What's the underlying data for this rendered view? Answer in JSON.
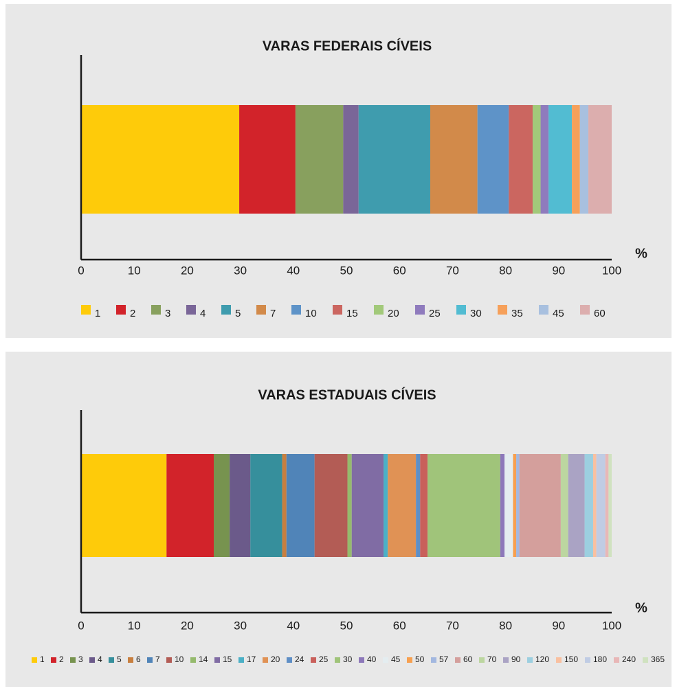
{
  "chart_data": [
    {
      "type": "stacked-bar",
      "title": "VARAS FEDERAIS CÍVEIS",
      "x_label": "%",
      "xlim": [
        0,
        100
      ],
      "xticks": [
        0,
        10,
        20,
        30,
        40,
        50,
        60,
        70,
        80,
        90,
        100
      ],
      "series": [
        {
          "name": "1",
          "color": "#fecb0a",
          "values": [
            29.8
          ]
        },
        {
          "name": "2",
          "color": "#d2232a",
          "values": [
            10.6
          ]
        },
        {
          "name": "3",
          "color": "#88a05e",
          "values": [
            9.0
          ]
        },
        {
          "name": "4",
          "color": "#7a6698",
          "values": [
            2.9
          ]
        },
        {
          "name": "5",
          "color": "#3f9cae",
          "values": [
            13.5
          ]
        },
        {
          "name": "7",
          "color": "#d28a4a",
          "values": [
            8.9
          ]
        },
        {
          "name": "10",
          "color": "#5e93c8",
          "values": [
            5.9
          ]
        },
        {
          "name": "15",
          "color": "#cb6660",
          "values": [
            4.5
          ]
        },
        {
          "name": "20",
          "color": "#a2c97a",
          "values": [
            1.5
          ]
        },
        {
          "name": "25",
          "color": "#8f7bbd",
          "values": [
            1.5
          ]
        },
        {
          "name": "30",
          "color": "#52bcd2",
          "values": [
            4.4
          ]
        },
        {
          "name": "35",
          "color": "#f6a05a",
          "values": [
            1.5
          ]
        },
        {
          "name": "45",
          "color": "#a8c0df",
          "values": [
            1.6
          ]
        },
        {
          "name": "60",
          "color": "#dcaeae",
          "values": [
            4.4
          ]
        }
      ]
    },
    {
      "type": "stacked-bar",
      "title": "VARAS ESTADUAIS CÍVEIS",
      "x_label": "%",
      "xlim": [
        0,
        100
      ],
      "xticks": [
        0,
        10,
        20,
        30,
        40,
        50,
        60,
        70,
        80,
        90,
        100
      ],
      "series": [
        {
          "name": "1",
          "color": "#fecb0a",
          "values": [
            16.1
          ]
        },
        {
          "name": "2",
          "color": "#d2232a",
          "values": [
            8.9
          ]
        },
        {
          "name": "3",
          "color": "#77934f",
          "values": [
            3.0
          ]
        },
        {
          "name": "4",
          "color": "#6b5a8a",
          "values": [
            3.9
          ]
        },
        {
          "name": "5",
          "color": "#368f9c",
          "values": [
            6.0
          ]
        },
        {
          "name": "6",
          "color": "#c87f3f",
          "values": [
            0.8
          ]
        },
        {
          "name": "7",
          "color": "#5084b8",
          "values": [
            5.3
          ]
        },
        {
          "name": "10",
          "color": "#b35c55",
          "values": [
            6.2
          ]
        },
        {
          "name": "14",
          "color": "#95ba6d",
          "values": [
            0.8
          ]
        },
        {
          "name": "15",
          "color": "#806ca4",
          "values": [
            6.0
          ]
        },
        {
          "name": "17",
          "color": "#4bb0c6",
          "values": [
            0.8
          ]
        },
        {
          "name": "20",
          "color": "#e09255",
          "values": [
            5.3
          ]
        },
        {
          "name": "24",
          "color": "#5f8fc6",
          "values": [
            0.8
          ]
        },
        {
          "name": "25",
          "color": "#c9605b",
          "values": [
            1.4
          ]
        },
        {
          "name": "30",
          "color": "#a0c47a",
          "values": [
            13.7
          ]
        },
        {
          "name": "40",
          "color": "#8d78ba",
          "values": [
            0.8
          ]
        },
        {
          "name": "45",
          "color": "#e4edf0",
          "values": [
            1.6
          ]
        },
        {
          "name": "50",
          "color": "#f7a050",
          "values": [
            0.6
          ]
        },
        {
          "name": "57",
          "color": "#a3b8e0",
          "values": [
            0.6
          ]
        },
        {
          "name": "60",
          "color": "#d49f9c",
          "values": [
            7.8
          ]
        },
        {
          "name": "70",
          "color": "#bcd6a0",
          "values": [
            1.4
          ]
        },
        {
          "name": "90",
          "color": "#aaa3c4",
          "values": [
            3.1
          ]
        },
        {
          "name": "120",
          "color": "#9ccfe0",
          "values": [
            1.6
          ]
        },
        {
          "name": "150",
          "color": "#f9c0a0",
          "values": [
            0.6
          ]
        },
        {
          "name": "180",
          "color": "#c0cce4",
          "values": [
            1.7
          ]
        },
        {
          "name": "240",
          "color": "#e8b7b7",
          "values": [
            0.6
          ]
        },
        {
          "name": "365",
          "color": "#d0e2c0",
          "values": [
            0.6
          ]
        }
      ]
    }
  ]
}
